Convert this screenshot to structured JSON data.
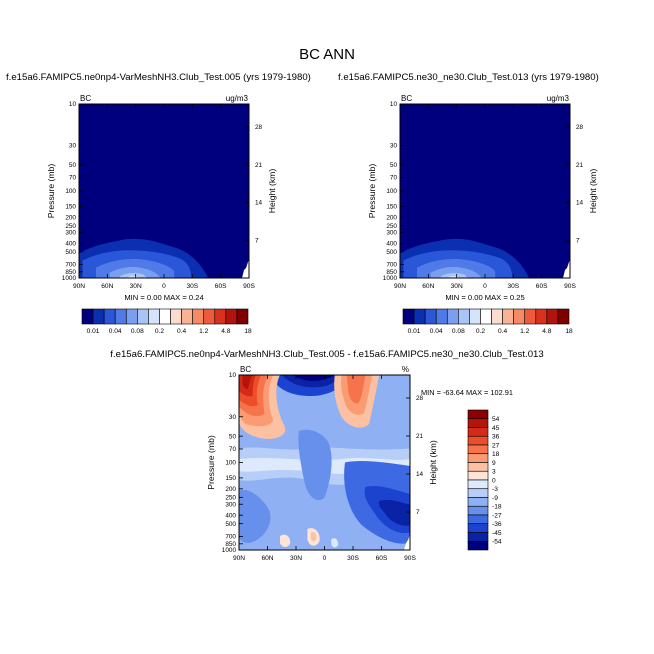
{
  "title": "BC ANN",
  "chart_data": [
    {
      "type": "heatmap",
      "title": "f.e15a6.FAMIPC5.ne0np4-VarMeshNH3.Club_Test.005 (yrs 1979-1980)",
      "left_label": "BC",
      "right_label": "ug/m3",
      "xlabel": "",
      "ylabel": "Pressure (mb)",
      "y2label": "Height (km)",
      "x_ticks": [
        "90N",
        "60N",
        "30N",
        "0",
        "30S",
        "60S",
        "90S"
      ],
      "y_ticks": [
        10,
        30,
        50,
        70,
        100,
        150,
        200,
        250,
        300,
        400,
        500,
        700,
        850,
        1000
      ],
      "y_tick_labels": [
        "10",
        "30",
        "50",
        "70",
        "100",
        "150",
        "200",
        "250",
        "300",
        "400",
        "500",
        "700",
        "850",
        "1000"
      ],
      "y2_ticks": [
        7,
        14,
        21,
        28
      ],
      "y2_tick_labels": [
        "7",
        "14",
        "21",
        "28"
      ],
      "stats_text": "MIN =  0.00  MAX =  0.24",
      "min": 0.0,
      "max": 0.24,
      "colorbar": {
        "labels": [
          "0.01",
          "0.04",
          "0.08",
          "0.2",
          "0.4",
          "1.2",
          "4.8",
          "18"
        ],
        "colors": [
          "#00007f",
          "#0a2fb0",
          "#2a56d8",
          "#4f7ae8",
          "#7a9ff0",
          "#a9c4f7",
          "#d6e4fb",
          "#ffffff",
          "#fcdccc",
          "#f9b293",
          "#f58a64",
          "#ee5b3c",
          "#d8311d",
          "#b1140c",
          "#7f0000"
        ]
      }
    },
    {
      "type": "heatmap",
      "title": "f.e15a6.FAMIPC5.ne30_ne30.Club_Test.013 (yrs 1979-1980)",
      "left_label": "BC",
      "right_label": "ug/m3",
      "xlabel": "",
      "ylabel": "Pressure (mb)",
      "y2label": "Height (km)",
      "x_ticks": [
        "90N",
        "60N",
        "30N",
        "0",
        "30S",
        "60S",
        "90S"
      ],
      "y_ticks": [
        10,
        30,
        50,
        70,
        100,
        150,
        200,
        250,
        300,
        400,
        500,
        700,
        850,
        1000
      ],
      "y_tick_labels": [
        "10",
        "30",
        "50",
        "70",
        "100",
        "150",
        "200",
        "250",
        "300",
        "400",
        "500",
        "700",
        "850",
        "1000"
      ],
      "y2_ticks": [
        7,
        14,
        21,
        28
      ],
      "y2_tick_labels": [
        "7",
        "14",
        "21",
        "28"
      ],
      "stats_text": "MIN =  0.00  MAX =  0.25",
      "min": 0.0,
      "max": 0.25,
      "colorbar": {
        "labels": [
          "0.01",
          "0.04",
          "0.08",
          "0.2",
          "0.4",
          "1.2",
          "4.8",
          "18"
        ],
        "colors": [
          "#00007f",
          "#0a2fb0",
          "#2a56d8",
          "#4f7ae8",
          "#7a9ff0",
          "#a9c4f7",
          "#d6e4fb",
          "#ffffff",
          "#fcdccc",
          "#f9b293",
          "#f58a64",
          "#ee5b3c",
          "#d8311d",
          "#b1140c",
          "#7f0000"
        ]
      }
    },
    {
      "type": "heatmap",
      "title": "f.e15a6.FAMIPC5.ne0np4-VarMeshNH3.Club_Test.005 - f.e15a6.FAMIPC5.ne30_ne30.Club_Test.013",
      "left_label": "BC",
      "right_label": "%",
      "xlabel": "",
      "ylabel": "Pressure (mb)",
      "y2label": "Height (km)",
      "x_ticks": [
        "90N",
        "60N",
        "30N",
        "0",
        "30S",
        "60S",
        "90S"
      ],
      "y_ticks": [
        10,
        30,
        50,
        70,
        100,
        150,
        200,
        250,
        300,
        400,
        500,
        700,
        850,
        1000
      ],
      "y_tick_labels": [
        "10",
        "30",
        "50",
        "70",
        "100",
        "150",
        "200",
        "250",
        "300",
        "400",
        "500",
        "700",
        "850",
        "1000"
      ],
      "y2_ticks": [
        7,
        14,
        21,
        28
      ],
      "y2_tick_labels": [
        "7",
        "14",
        "21",
        "28"
      ],
      "stats_text": "MIN = -63.64  MAX = 102.91",
      "min": -63.64,
      "max": 102.91,
      "colorbar": {
        "labels": [
          "54",
          "45",
          "36",
          "27",
          "18",
          "9",
          "3",
          "0",
          "-3",
          "-9",
          "-18",
          "-27",
          "-36",
          "-45",
          "-54"
        ],
        "colors": [
          "#8b0000",
          "#b51409",
          "#d42b18",
          "#ec4e2c",
          "#f6744b",
          "#fa9b73",
          "#fcc1a3",
          "#fde4d6",
          "#ddeafb",
          "#b7cff8",
          "#8fb1f3",
          "#6690ec",
          "#3d6ae3",
          "#1b43d0",
          "#0a22a6",
          "#00007f"
        ]
      }
    }
  ]
}
